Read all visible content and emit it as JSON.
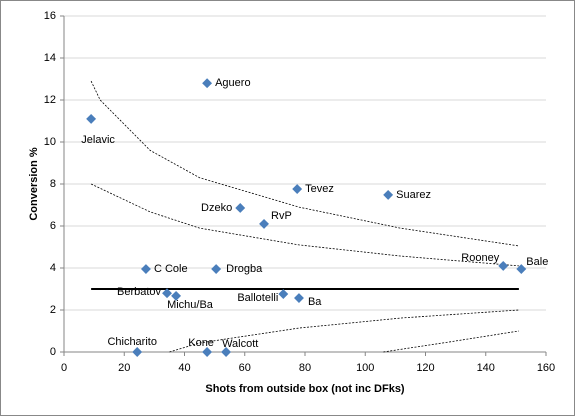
{
  "chart_data": {
    "type": "scatter",
    "x_label": "Shots from outside box (not inc DFks)",
    "y_label": "Conversion %",
    "xlim": [
      0,
      160
    ],
    "xticks": [
      0,
      20,
      40,
      60,
      80,
      100,
      120,
      140,
      160
    ],
    "ylim": [
      0,
      16
    ],
    "yticks": [
      0,
      2,
      4,
      6,
      8,
      10,
      12,
      14,
      16
    ],
    "grid": true,
    "series": [
      {
        "type": "scatter",
        "color": "#4a7ebb",
        "labels": [
          "Jelavic",
          "Aguero",
          "Tevez",
          "Suarez",
          "Dzeko",
          "RvP",
          "C Cole",
          "Drogba",
          "Rooney",
          "Bale",
          "Berbatov",
          "Michu/Ba",
          "Ballotelli",
          "Ba",
          "Chicharito",
          "Kone",
          "Walcott"
        ],
        "x": [
          9,
          47.5,
          77.4,
          107.6,
          58.5,
          66.4,
          27.2,
          50.5,
          145.8,
          151.8,
          34.2,
          37.2,
          72.8,
          78,
          24.3,
          47.5,
          53.8
        ],
        "values": [
          11.1,
          12.8,
          7.76,
          7.48,
          6.86,
          6.1,
          3.95,
          3.95,
          4.1,
          3.95,
          2.8,
          2.67,
          2.76,
          2.57,
          0,
          0,
          0
        ]
      },
      {
        "type": "line",
        "color": "#000000",
        "style": "dashed",
        "x": [
          9,
          12,
          28.6,
          45,
          78,
          111.6,
          151
        ],
        "values": [
          12.9,
          12,
          9.6,
          8.3,
          6.9,
          5.9,
          5.05
        ]
      },
      {
        "type": "line",
        "color": "#000000",
        "style": "dashed",
        "x": [
          9,
          28.6,
          45,
          78,
          111.6,
          151
        ],
        "values": [
          8,
          6.67,
          5.9,
          5.1,
          4.57,
          4.1
        ]
      },
      {
        "type": "line",
        "color": "#000000",
        "style": "dashed",
        "x": [
          35,
          45,
          78,
          112,
          151
        ],
        "values": [
          0,
          0.43,
          1.14,
          1.62,
          2
        ]
      },
      {
        "type": "line",
        "color": "#000000",
        "style": "dashed",
        "x": [
          106,
          128,
          151
        ],
        "values": [
          0,
          0.48,
          1
        ]
      },
      {
        "type": "line",
        "color": "#000000",
        "style": "solid",
        "x": [
          9,
          151
        ],
        "values": [
          3,
          3
        ]
      }
    ]
  }
}
